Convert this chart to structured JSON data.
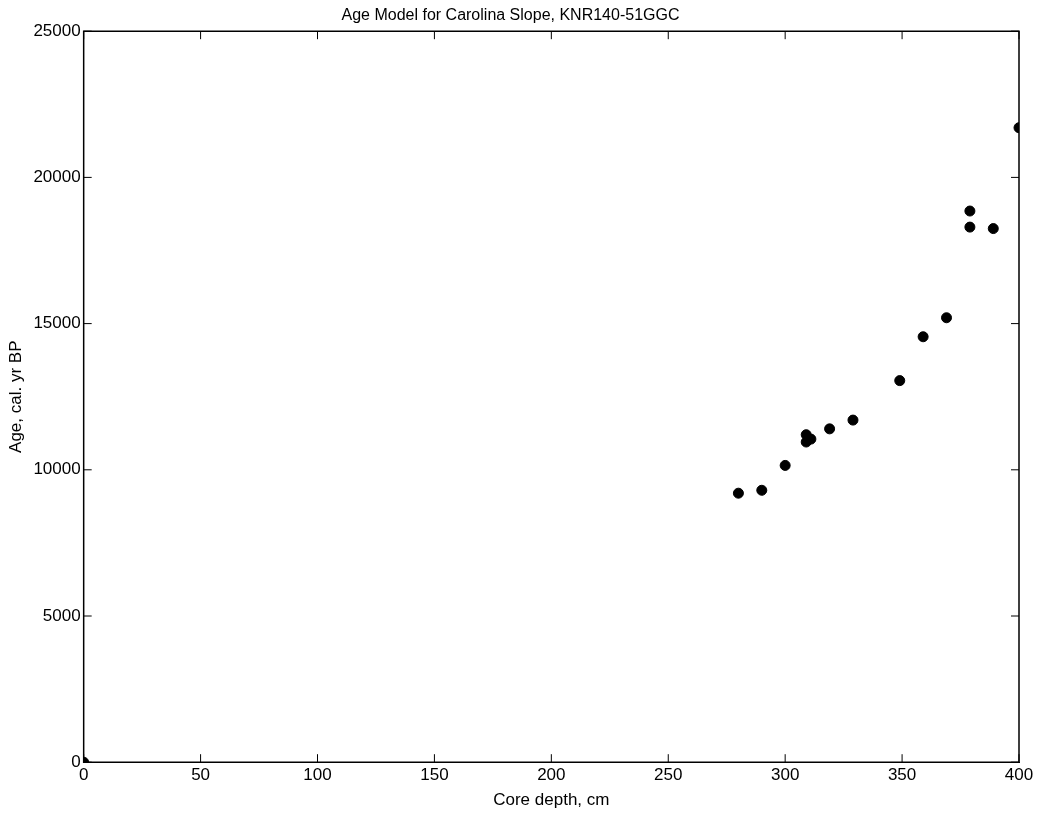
{
  "chart_data": {
    "type": "scatter",
    "title": "Age Model for Carolina Slope, KNR140-51GGC",
    "xlabel": "Core depth, cm",
    "ylabel": "Age, cal. yr BP",
    "x": [
      0,
      280,
      290,
      300,
      309,
      309,
      311,
      319,
      329,
      349,
      359,
      369,
      379,
      379,
      389,
      400
    ],
    "series": [
      {
        "color": "#000000",
        "values": [
          0,
          9200,
          9300,
          10150,
          11200,
          10950,
          11050,
          11400,
          11700,
          13050,
          14550,
          15200,
          18850,
          18300,
          18250,
          21700
        ]
      }
    ],
    "xlim": [
      0,
      400
    ],
    "xticks": [
      0,
      50,
      100,
      150,
      200,
      250,
      300,
      350,
      400
    ],
    "ylim": [
      0,
      25000
    ],
    "yticks": [
      0,
      5000,
      10000,
      15000,
      20000,
      25000
    ],
    "grid": false,
    "legend": false,
    "marker": "circle"
  }
}
